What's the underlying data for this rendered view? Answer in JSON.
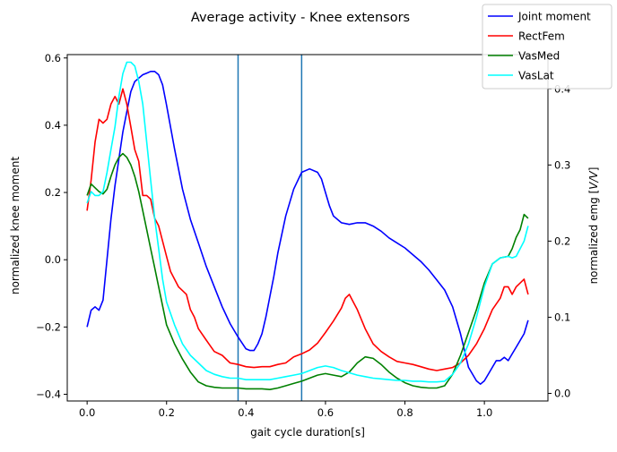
{
  "chart_data": {
    "type": "line",
    "title": "Average activity - Knee extensors",
    "xlabel": "gait cycle duration[s]",
    "ylabel_left": "normalized knee moment",
    "ylabel_right": "normalized emg [V/V]",
    "xlim": [
      -0.05,
      1.16
    ],
    "ylim_left": [
      -0.42,
      0.61
    ],
    "ylim_right": [
      -0.01,
      0.445
    ],
    "x_ticks": [
      0.0,
      0.2,
      0.4,
      0.6,
      0.8,
      1.0
    ],
    "x_tick_labels": [
      "0.0",
      "0.2",
      "0.4",
      "0.6",
      "0.8",
      "1.0"
    ],
    "y_ticks_left": [
      -0.4,
      -0.2,
      0.0,
      0.2,
      0.4,
      0.6
    ],
    "y_tick_labels_left": [
      "−0.4",
      "−0.2",
      "0.0",
      "0.2",
      "0.4",
      "0.6"
    ],
    "y_ticks_right": [
      0.0,
      0.1,
      0.2,
      0.3,
      0.4
    ],
    "y_tick_labels_right": [
      "0.0",
      "0.1",
      "0.2",
      "0.3",
      "0.4"
    ],
    "vertical_lines": [
      0.38,
      0.54
    ],
    "vertical_line_color": "#1f77b4",
    "legend_position": "top-right",
    "grid": false,
    "series": [
      {
        "name": "Joint moment",
        "axis": "left",
        "color": "#0000ff",
        "x": [
          0.0,
          0.01,
          0.02,
          0.03,
          0.04,
          0.05,
          0.06,
          0.07,
          0.08,
          0.09,
          0.1,
          0.11,
          0.12,
          0.13,
          0.14,
          0.15,
          0.16,
          0.17,
          0.18,
          0.19,
          0.2,
          0.22,
          0.24,
          0.26,
          0.28,
          0.3,
          0.32,
          0.34,
          0.36,
          0.38,
          0.4,
          0.41,
          0.42,
          0.43,
          0.44,
          0.45,
          0.46,
          0.47,
          0.48,
          0.5,
          0.52,
          0.54,
          0.56,
          0.58,
          0.59,
          0.6,
          0.61,
          0.62,
          0.64,
          0.66,
          0.68,
          0.7,
          0.72,
          0.74,
          0.76,
          0.78,
          0.8,
          0.82,
          0.84,
          0.86,
          0.88,
          0.9,
          0.92,
          0.94,
          0.96,
          0.98,
          0.99,
          1.0,
          1.01,
          1.02,
          1.03,
          1.04,
          1.05,
          1.06,
          1.07,
          1.08,
          1.09,
          1.1,
          1.11
        ],
        "y": [
          -0.2,
          -0.15,
          -0.14,
          -0.15,
          -0.12,
          0.0,
          0.12,
          0.22,
          0.3,
          0.38,
          0.44,
          0.5,
          0.53,
          0.54,
          0.55,
          0.555,
          0.56,
          0.56,
          0.55,
          0.52,
          0.46,
          0.33,
          0.21,
          0.12,
          0.05,
          -0.02,
          -0.08,
          -0.14,
          -0.19,
          -0.23,
          -0.265,
          -0.27,
          -0.27,
          -0.25,
          -0.22,
          -0.17,
          -0.11,
          -0.05,
          0.02,
          0.13,
          0.21,
          0.26,
          0.27,
          0.26,
          0.24,
          0.2,
          0.16,
          0.13,
          0.11,
          0.105,
          0.11,
          0.11,
          0.1,
          0.085,
          0.065,
          0.05,
          0.035,
          0.015,
          -0.005,
          -0.03,
          -0.06,
          -0.09,
          -0.14,
          -0.22,
          -0.32,
          -0.36,
          -0.37,
          -0.36,
          -0.34,
          -0.32,
          -0.3,
          -0.3,
          -0.29,
          -0.3,
          -0.28,
          -0.26,
          -0.24,
          -0.22,
          -0.18
        ]
      },
      {
        "name": "RectFem",
        "axis": "right",
        "color": "#ff0000",
        "x": [
          0.0,
          0.01,
          0.02,
          0.03,
          0.04,
          0.05,
          0.06,
          0.07,
          0.08,
          0.09,
          0.1,
          0.11,
          0.12,
          0.13,
          0.14,
          0.15,
          0.16,
          0.17,
          0.18,
          0.19,
          0.2,
          0.21,
          0.22,
          0.23,
          0.24,
          0.25,
          0.26,
          0.27,
          0.28,
          0.3,
          0.32,
          0.34,
          0.36,
          0.38,
          0.4,
          0.42,
          0.44,
          0.46,
          0.48,
          0.5,
          0.52,
          0.54,
          0.56,
          0.58,
          0.6,
          0.62,
          0.64,
          0.65,
          0.66,
          0.67,
          0.68,
          0.7,
          0.72,
          0.74,
          0.76,
          0.78,
          0.8,
          0.82,
          0.84,
          0.86,
          0.88,
          0.9,
          0.92,
          0.94,
          0.96,
          0.98,
          1.0,
          1.02,
          1.04,
          1.05,
          1.06,
          1.07,
          1.08,
          1.09,
          1.1,
          1.11
        ],
        "y": [
          0.24,
          0.28,
          0.33,
          0.36,
          0.355,
          0.36,
          0.38,
          0.39,
          0.38,
          0.4,
          0.38,
          0.35,
          0.32,
          0.305,
          0.26,
          0.26,
          0.255,
          0.23,
          0.22,
          0.2,
          0.18,
          0.16,
          0.15,
          0.14,
          0.135,
          0.13,
          0.11,
          0.1,
          0.085,
          0.07,
          0.055,
          0.05,
          0.04,
          0.038,
          0.035,
          0.034,
          0.035,
          0.035,
          0.038,
          0.04,
          0.048,
          0.052,
          0.057,
          0.066,
          0.08,
          0.095,
          0.112,
          0.125,
          0.13,
          0.12,
          0.11,
          0.085,
          0.065,
          0.055,
          0.048,
          0.042,
          0.04,
          0.038,
          0.035,
          0.032,
          0.03,
          0.032,
          0.034,
          0.04,
          0.05,
          0.065,
          0.085,
          0.11,
          0.125,
          0.14,
          0.14,
          0.13,
          0.14,
          0.145,
          0.15,
          0.13
        ]
      },
      {
        "name": "VasMed",
        "axis": "right",
        "color": "#008000",
        "x": [
          0.0,
          0.01,
          0.02,
          0.03,
          0.04,
          0.05,
          0.06,
          0.07,
          0.08,
          0.09,
          0.1,
          0.11,
          0.12,
          0.13,
          0.14,
          0.15,
          0.16,
          0.17,
          0.18,
          0.19,
          0.2,
          0.22,
          0.24,
          0.26,
          0.28,
          0.3,
          0.32,
          0.34,
          0.36,
          0.38,
          0.4,
          0.42,
          0.44,
          0.46,
          0.48,
          0.5,
          0.52,
          0.54,
          0.56,
          0.58,
          0.6,
          0.62,
          0.64,
          0.66,
          0.68,
          0.7,
          0.72,
          0.74,
          0.76,
          0.78,
          0.8,
          0.82,
          0.84,
          0.86,
          0.88,
          0.9,
          0.92,
          0.94,
          0.96,
          0.98,
          1.0,
          1.02,
          1.04,
          1.06,
          1.07,
          1.08,
          1.09,
          1.1,
          1.11
        ],
        "y": [
          0.26,
          0.275,
          0.27,
          0.265,
          0.262,
          0.268,
          0.285,
          0.3,
          0.31,
          0.315,
          0.31,
          0.3,
          0.285,
          0.265,
          0.24,
          0.215,
          0.19,
          0.165,
          0.14,
          0.115,
          0.09,
          0.065,
          0.045,
          0.028,
          0.015,
          0.01,
          0.008,
          0.007,
          0.007,
          0.007,
          0.006,
          0.006,
          0.006,
          0.005,
          0.007,
          0.01,
          0.013,
          0.016,
          0.02,
          0.024,
          0.026,
          0.024,
          0.022,
          0.028,
          0.04,
          0.048,
          0.046,
          0.038,
          0.028,
          0.02,
          0.014,
          0.01,
          0.008,
          0.007,
          0.007,
          0.01,
          0.025,
          0.05,
          0.08,
          0.11,
          0.145,
          0.17,
          0.178,
          0.18,
          0.19,
          0.205,
          0.215,
          0.235,
          0.23
        ]
      },
      {
        "name": "VasLat",
        "axis": "right",
        "color": "#00ffff",
        "x": [
          0.0,
          0.01,
          0.02,
          0.03,
          0.04,
          0.05,
          0.06,
          0.07,
          0.08,
          0.09,
          0.1,
          0.11,
          0.12,
          0.13,
          0.14,
          0.15,
          0.16,
          0.17,
          0.18,
          0.19,
          0.2,
          0.22,
          0.24,
          0.26,
          0.28,
          0.3,
          0.32,
          0.34,
          0.36,
          0.38,
          0.4,
          0.42,
          0.44,
          0.46,
          0.48,
          0.5,
          0.52,
          0.54,
          0.56,
          0.58,
          0.6,
          0.62,
          0.64,
          0.66,
          0.68,
          0.7,
          0.72,
          0.74,
          0.76,
          0.78,
          0.8,
          0.82,
          0.84,
          0.86,
          0.88,
          0.9,
          0.92,
          0.94,
          0.96,
          0.98,
          1.0,
          1.02,
          1.04,
          1.06,
          1.07,
          1.08,
          1.09,
          1.1,
          1.11
        ],
        "y": [
          0.25,
          0.265,
          0.26,
          0.26,
          0.265,
          0.29,
          0.32,
          0.35,
          0.39,
          0.42,
          0.435,
          0.435,
          0.43,
          0.41,
          0.38,
          0.33,
          0.28,
          0.23,
          0.19,
          0.15,
          0.12,
          0.09,
          0.065,
          0.05,
          0.04,
          0.03,
          0.025,
          0.022,
          0.02,
          0.02,
          0.018,
          0.018,
          0.018,
          0.018,
          0.02,
          0.022,
          0.024,
          0.026,
          0.03,
          0.034,
          0.036,
          0.034,
          0.03,
          0.027,
          0.024,
          0.022,
          0.02,
          0.019,
          0.018,
          0.017,
          0.017,
          0.016,
          0.016,
          0.015,
          0.015,
          0.016,
          0.025,
          0.04,
          0.065,
          0.1,
          0.14,
          0.17,
          0.178,
          0.18,
          0.178,
          0.18,
          0.19,
          0.2,
          0.22
        ]
      }
    ]
  }
}
